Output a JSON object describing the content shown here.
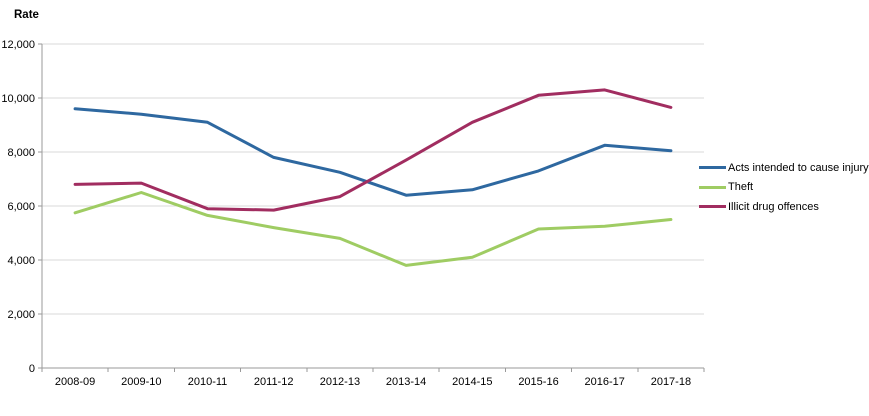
{
  "chart_data": {
    "type": "line",
    "title": "",
    "ylabel": "Rate",
    "xlabel": "",
    "ylim": [
      0,
      12000
    ],
    "grid": true,
    "legend_position": "right",
    "categories": [
      "2008-09",
      "2009-10",
      "2010-11",
      "2011-12",
      "2012-13",
      "2013-14",
      "2014-15",
      "2015-16",
      "2016-17",
      "2017-18"
    ],
    "yticks": [
      {
        "value": 0,
        "label": "0"
      },
      {
        "value": 2000,
        "label": "2,000"
      },
      {
        "value": 4000,
        "label": "4,000"
      },
      {
        "value": 6000,
        "label": "6,000"
      },
      {
        "value": 8000,
        "label": "8,000"
      },
      {
        "value": 10000,
        "label": "10,000"
      },
      {
        "value": 12000,
        "label": "12,000"
      }
    ],
    "series": [
      {
        "name": "Acts intended to cause injury",
        "color": "#2e68a0",
        "values": [
          9600,
          9400,
          9100,
          7800,
          7250,
          6400,
          6600,
          7300,
          8250,
          8050
        ]
      },
      {
        "name": "Theft",
        "color": "#9fcc63",
        "values": [
          5750,
          6500,
          5650,
          5200,
          4800,
          3800,
          4100,
          5150,
          5250,
          5500
        ]
      },
      {
        "name": "Illicit drug offences",
        "color": "#a12d60",
        "values": [
          6800,
          6850,
          5900,
          5850,
          6350,
          7700,
          9100,
          10100,
          10300,
          9650
        ]
      }
    ],
    "colors": {
      "grid": "#d9d9d9",
      "axis": "#9a9a9a",
      "background": "#ffffff"
    }
  }
}
